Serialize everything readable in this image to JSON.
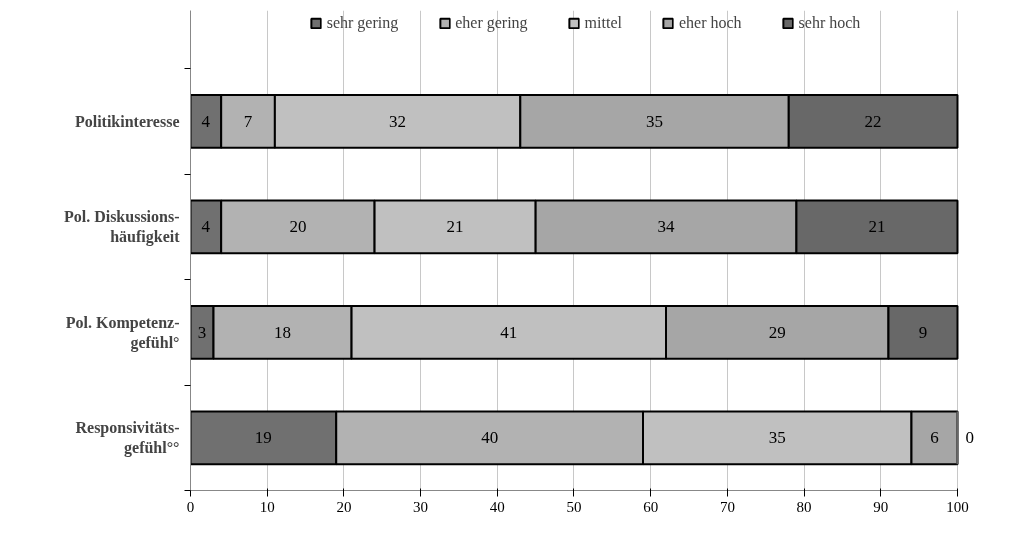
{
  "chart_data": {
    "type": "bar",
    "orientation": "horizontal",
    "stacked": true,
    "categories": [
      "Politikinteresse",
      "Pol. Diskussions-\nhäufigkeit",
      "Pol. Kompetenz-\ngefühl°",
      "Responsivitäts-\ngefühl°°"
    ],
    "series": [
      {
        "name": "sehr gering",
        "color": "#707070",
        "values": [
          4,
          4,
          3,
          19
        ]
      },
      {
        "name": "eher gering",
        "color": "#b2b2b2",
        "values": [
          7,
          20,
          18,
          40
        ]
      },
      {
        "name": "mittel",
        "color": "#c0c0c0",
        "values": [
          32,
          21,
          41,
          35
        ]
      },
      {
        "name": "eher hoch",
        "color": "#a6a6a6",
        "values": [
          35,
          34,
          29,
          6
        ]
      },
      {
        "name": "sehr hoch",
        "color": "#686868",
        "values": [
          22,
          21,
          9,
          0
        ]
      }
    ],
    "xlim": [
      0,
      100
    ],
    "xticks": [
      0,
      10,
      20,
      30,
      40,
      50,
      60,
      70,
      80,
      90,
      100
    ],
    "grid": "x",
    "legend": "top",
    "data_labels": true
  }
}
